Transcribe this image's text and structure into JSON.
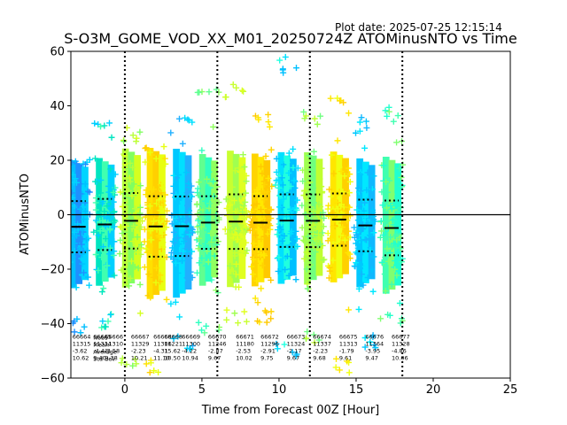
{
  "plot_date": "Plot date: 2025-07-25 12:15:14",
  "chart_data": {
    "type": "scatter",
    "title": "S-O3M_GOME_VOD_XX_M01_20250724Z ATOMinusNTO vs Time",
    "xlabel": "Time from Forecast 00Z [Hour]",
    "ylabel": "ATOMinusNTO",
    "xlim": [
      -3.5,
      25
    ],
    "ylim": [
      -60,
      60
    ],
    "xticks": [
      0,
      5,
      10,
      15,
      20,
      25
    ],
    "yticks": [
      -60,
      -40,
      -20,
      0,
      20,
      40,
      60
    ],
    "grid": false,
    "vlines_dotted": [
      0,
      6,
      12,
      18
    ],
    "hline": 0,
    "orbits": [
      {
        "x": -3.0,
        "mean": -4.42,
        "std": 9.4,
        "lo": -44,
        "hi": 24,
        "colors": [
          "#00bfff",
          "#1e90ff",
          "#00d4ff"
        ]
      },
      {
        "x": -1.3,
        "mean": -3.58,
        "std": 9.38,
        "lo": -42,
        "hi": 34,
        "colors": [
          "#00e5c0",
          "#40ffb0",
          "#00d0ff"
        ]
      },
      {
        "x": 0.4,
        "mean": -2.23,
        "std": 10.21,
        "lo": -56,
        "hi": 32,
        "colors": [
          "#b8ff3c",
          "#80ff60",
          "#d4ff20"
        ]
      },
      {
        "x": 2.0,
        "mean": -4.31,
        "std": 11.1,
        "lo": -58,
        "hi": 26,
        "colors": [
          "#ffe000",
          "#ffd000",
          "#e8ff10"
        ]
      },
      {
        "x": 3.7,
        "mean": -4.22,
        "std": 10.94,
        "lo": -50,
        "hi": 36,
        "colors": [
          "#00c8ff",
          "#00e0ff",
          "#20b0ff"
        ]
      },
      {
        "x": 5.4,
        "mean": -2.87,
        "std": 9.67,
        "lo": -44,
        "hi": 48,
        "colors": [
          "#60ff90",
          "#30ffc0",
          "#90ff60"
        ]
      },
      {
        "x": 7.2,
        "mean": -2.53,
        "std": 10.02,
        "lo": -40,
        "hi": 48,
        "colors": [
          "#c8ff30",
          "#a0ff50",
          "#e0ff20"
        ]
      },
      {
        "x": 8.8,
        "mean": -2.91,
        "std": 9.75,
        "lo": -40,
        "hi": 38,
        "colors": [
          "#ffd400",
          "#ffe800",
          "#ffc800"
        ]
      },
      {
        "x": 10.5,
        "mean": -2.17,
        "std": 9.67,
        "lo": -52,
        "hi": 58,
        "colors": [
          "#00e0ff",
          "#20ffe0",
          "#00c0ff"
        ]
      },
      {
        "x": 12.2,
        "mean": -2.23,
        "std": 9.68,
        "lo": -48,
        "hi": 38,
        "colors": [
          "#a0ff50",
          "#70ff80",
          "#c0ff30"
        ]
      },
      {
        "x": 13.9,
        "mean": -1.79,
        "std": 9.61,
        "lo": -58,
        "hi": 43,
        "colors": [
          "#ffe600",
          "#f0ff10",
          "#ffd000"
        ]
      },
      {
        "x": 15.6,
        "mean": -3.95,
        "std": 9.47,
        "lo": -50,
        "hi": 36,
        "colors": [
          "#00c8ff",
          "#00e8ff",
          "#10b8ff"
        ]
      },
      {
        "x": 17.3,
        "mean": -4.86,
        "std": 10.06,
        "lo": -42,
        "hi": 40,
        "colors": [
          "#40ffb0",
          "#80ff70",
          "#20ffd0"
        ]
      }
    ],
    "stat_labels": [
      {
        "x": -3.4,
        "lines": [
          "66664",
          "11315",
          "-3.62",
          "10.62"
        ]
      },
      {
        "x": -2.05,
        "lines": [
          "66665",
          "11314",
          "-4.42",
          "9.40"
        ]
      },
      {
        "x": -2.05,
        "lines": [
          "Nobs",
          "Mean",
          "Average",
          "Std dev"
        ],
        "yoff": 1
      },
      {
        "x": -1.3,
        "lines": [
          "66666",
          "11310",
          "-3.58",
          "9.38"
        ]
      },
      {
        "x": 0.4,
        "lines": [
          "66667",
          "11329",
          "-2.23",
          "10.21"
        ]
      },
      {
        "x": 1.85,
        "lines": [
          "66668",
          "11306",
          "-4.31",
          "11.10"
        ]
      },
      {
        "x": 2.55,
        "lines": [
          "66668",
          "11221",
          "15.62",
          "10.50"
        ]
      },
      {
        "x": 3.7,
        "lines": [
          "66669",
          "11300",
          "-4.22",
          "10.94"
        ]
      },
      {
        "x": 5.4,
        "lines": [
          "66670",
          "11246",
          "-2.87",
          "9.67"
        ]
      },
      {
        "x": 7.2,
        "lines": [
          "66671",
          "11180",
          "-2.53",
          "10.02"
        ]
      },
      {
        "x": 8.8,
        "lines": [
          "66672",
          "11296",
          "-2.91",
          "9.75"
        ]
      },
      {
        "x": 10.5,
        "lines": [
          "66673",
          "11324",
          "-2.17",
          "9.67"
        ]
      },
      {
        "x": 12.2,
        "lines": [
          "66674",
          "11337",
          "-2.23",
          "9.68"
        ]
      },
      {
        "x": 13.9,
        "lines": [
          "66675",
          "11313",
          "-1.79",
          "9.61"
        ]
      },
      {
        "x": 15.6,
        "lines": [
          "66676",
          "11364",
          "-3.95",
          "9.47"
        ]
      },
      {
        "x": 17.3,
        "lines": [
          "66677",
          "11328",
          "-4.86",
          "10.06"
        ]
      }
    ]
  }
}
